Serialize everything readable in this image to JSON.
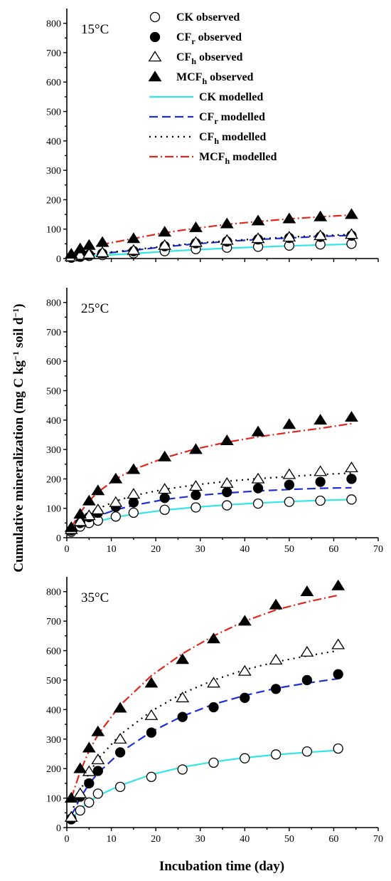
{
  "chart_data": {
    "type": "scatter",
    "ylabel": "Cumulative mineralization (mg C kg",
    "ylabel_sup1": "−1",
    "ylabel_mid": " soil d",
    "ylabel_sup2": "−1",
    "ylabel_end": ")",
    "xlabel": "Incubation time (day)",
    "x_ticks": [
      0,
      10,
      20,
      30,
      40,
      50,
      60,
      70
    ],
    "y_ticks": [
      0,
      100,
      200,
      300,
      400,
      500,
      600,
      700,
      800
    ],
    "xlim": [
      0,
      70
    ],
    "ylim": [
      0,
      850
    ],
    "colors": {
      "CK_modelled": "#33e5e5",
      "CFr_modelled": "#1f2fd6",
      "CFh_modelled": "#000000",
      "MCFh_modelled": "#e0281e"
    },
    "legend": {
      "placement": "top-center of first panel",
      "entries": [
        {
          "key": "CK_obs",
          "base": "CK",
          "sub": "",
          "suffix": " observed",
          "marker": "open-circle"
        },
        {
          "key": "CFr_obs",
          "base": "CF",
          "sub": "r",
          "suffix": " observed",
          "marker": "filled-circle"
        },
        {
          "key": "CFh_obs",
          "base": "CF",
          "sub": "h",
          "suffix": " observed",
          "marker": "open-triangle"
        },
        {
          "key": "MCFh_obs",
          "base": "MCF",
          "sub": "h",
          "suffix": "  observed",
          "marker": "filled-triangle"
        },
        {
          "key": "CK_mod",
          "base": "CK",
          "sub": "",
          "suffix": " modelled",
          "line": "solid",
          "color": "#33e5e5"
        },
        {
          "key": "CFr_mod",
          "base": "CF",
          "sub": "r",
          "suffix": " modelled",
          "line": "dashed",
          "color": "#1f2fd6"
        },
        {
          "key": "CFh_mod",
          "base": "CF",
          "sub": "h",
          "suffix": " modelled",
          "line": "dotted",
          "color": "#000000"
        },
        {
          "key": "MCFh_mod",
          "base": "MCF",
          "sub": "h",
          "suffix": "  modelled",
          "line": "dashdot",
          "color": "#e0281e"
        }
      ]
    },
    "panels": [
      {
        "label": "15°C",
        "x": [
          1,
          3,
          5,
          8,
          15,
          22,
          29,
          36,
          43,
          50,
          57,
          64
        ],
        "observed": {
          "CK": [
            3,
            6,
            9,
            12,
            18,
            25,
            32,
            37,
            40,
            44,
            48,
            50
          ],
          "CFr": [
            5,
            9,
            13,
            17,
            25,
            42,
            52,
            58,
            65,
            70,
            74,
            78
          ],
          "CFh": [
            6,
            11,
            15,
            20,
            28,
            45,
            55,
            62,
            68,
            73,
            78,
            82
          ],
          "MCFh": [
            15,
            33,
            45,
            55,
            68,
            90,
            105,
            118,
            128,
            135,
            142,
            150
          ]
        },
        "modelled": {
          "CK": [
            2,
            5,
            8,
            11,
            17,
            24,
            30,
            35,
            39,
            43,
            46,
            49
          ],
          "CFr": [
            3,
            8,
            12,
            17,
            28,
            40,
            50,
            58,
            65,
            70,
            75,
            79
          ],
          "CFh": [
            4,
            9,
            14,
            19,
            30,
            42,
            52,
            60,
            67,
            73,
            78,
            82
          ],
          "MCFh": [
            10,
            25,
            37,
            48,
            68,
            88,
            103,
            116,
            126,
            135,
            142,
            148
          ]
        }
      },
      {
        "label": "25°C",
        "x": [
          1,
          3,
          5,
          7,
          11,
          15,
          22,
          29,
          36,
          43,
          50,
          57,
          64
        ],
        "observed": {
          "CK": [
            20,
            38,
            50,
            58,
            72,
            85,
            95,
            103,
            110,
            116,
            122,
            126,
            130
          ],
          "CFr": [
            25,
            50,
            70,
            85,
            105,
            120,
            135,
            145,
            155,
            168,
            180,
            190,
            200
          ],
          "CFh": [
            28,
            55,
            75,
            95,
            120,
            148,
            165,
            175,
            185,
            200,
            215,
            225,
            238
          ],
          "MCFh": [
            35,
            80,
            125,
            160,
            200,
            232,
            275,
            300,
            330,
            360,
            385,
            400,
            410
          ]
        },
        "modelled": {
          "CK": [
            14,
            32,
            46,
            56,
            70,
            80,
            94,
            104,
            112,
            118,
            123,
            127,
            130
          ],
          "CFr": [
            18,
            42,
            60,
            74,
            95,
            110,
            130,
            143,
            152,
            159,
            164,
            168,
            170
          ],
          "CFh": [
            24,
            55,
            80,
            98,
            125,
            143,
            165,
            180,
            192,
            201,
            208,
            215,
            220
          ],
          "MCFh": [
            35,
            85,
            125,
            155,
            200,
            232,
            272,
            302,
            325,
            343,
            358,
            372,
            388
          ]
        }
      },
      {
        "label": "35°C",
        "x": [
          1,
          3,
          5,
          7,
          12,
          19,
          26,
          33,
          40,
          47,
          54,
          61
        ],
        "observed": {
          "CK": [
            30,
            58,
            85,
            115,
            138,
            172,
            197,
            220,
            235,
            248,
            258,
            268
          ],
          "CFr": [
            28,
            105,
            150,
            192,
            255,
            322,
            375,
            408,
            440,
            470,
            500,
            520
          ],
          "CFh": [
            35,
            115,
            190,
            230,
            300,
            380,
            440,
            490,
            530,
            568,
            595,
            620
          ],
          "MCFh": [
            100,
            200,
            270,
            325,
            405,
            490,
            570,
            640,
            700,
            755,
            800,
            820
          ]
        },
        "modelled": {
          "CK": [
            28,
            62,
            88,
            108,
            143,
            180,
            205,
            223,
            237,
            247,
            255,
            262
          ],
          "CFr": [
            40,
            100,
            148,
            185,
            255,
            325,
            378,
            418,
            448,
            472,
            490,
            505
          ],
          "CFh": [
            50,
            125,
            185,
            232,
            315,
            395,
            455,
            500,
            535,
            562,
            582,
            600
          ],
          "MCFh": [
            100,
            190,
            260,
            315,
            415,
            515,
            590,
            650,
            700,
            738,
            765,
            788
          ]
        }
      }
    ]
  }
}
